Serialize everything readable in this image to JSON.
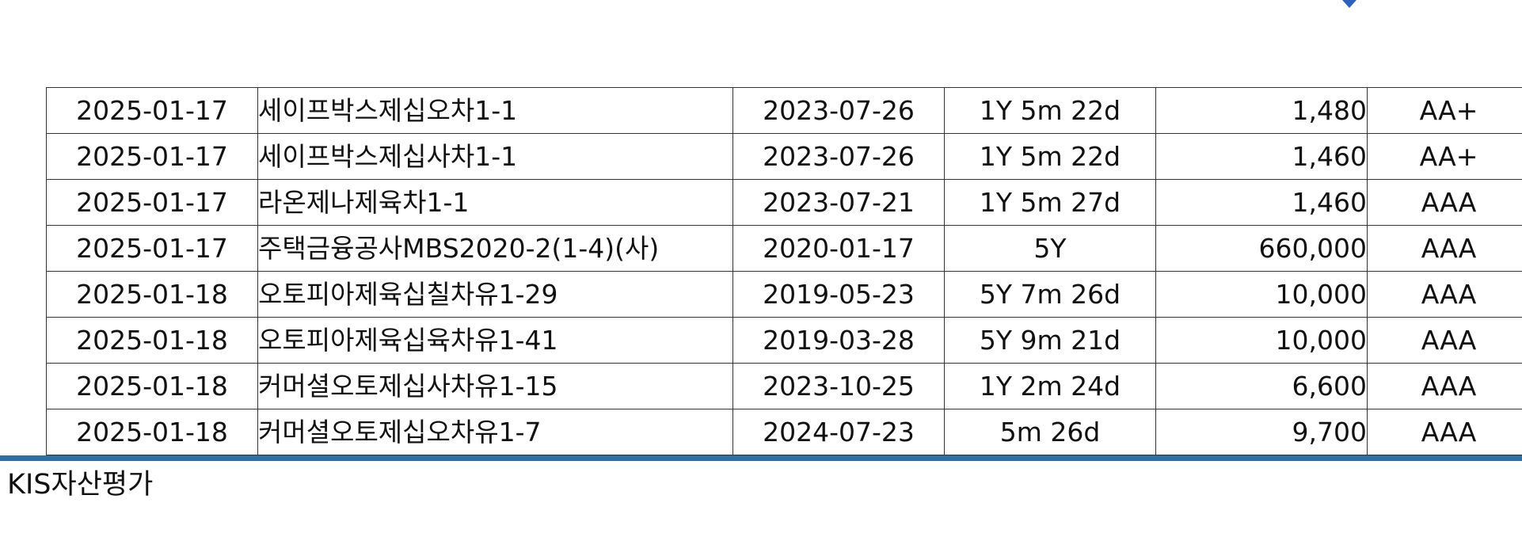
{
  "brand": {
    "name": "KIS자산평가",
    "accent_color": "#2f6ea5",
    "logo_color": "#1f4fa3",
    "logo_icon": "diamond-logo-icon"
  },
  "table": {
    "rows": [
      [
        "2025-01-17",
        "세이프박스제십오차1-1",
        "2023-07-26",
        "1Y 5m 22d",
        "1,480",
        "AA+"
      ],
      [
        "2025-01-17",
        "세이프박스제십사차1-1",
        "2023-07-26",
        "1Y 5m 22d",
        "1,460",
        "AA+"
      ],
      [
        "2025-01-17",
        "라온제나제육차1-1",
        "2023-07-21",
        "1Y 5m 27d",
        "1,460",
        "AAA"
      ],
      [
        "2025-01-17",
        "주택금융공사MBS2020-2(1-4)(사)",
        "2020-01-17",
        "5Y",
        "660,000",
        "AAA"
      ],
      [
        "2025-01-18",
        "오토피아제육십칠차유1-29",
        "2019-05-23",
        "5Y 7m 26d",
        "10,000",
        "AAA"
      ],
      [
        "2025-01-18",
        "오토피아제육십육차유1-41",
        "2019-03-28",
        "5Y 9m 21d",
        "10,000",
        "AAA"
      ],
      [
        "2025-01-18",
        "커머셜오토제십사차유1-15",
        "2023-10-25",
        "1Y 2m 24d",
        "6,600",
        "AAA"
      ],
      [
        "2025-01-18",
        "커머셜오토제십오차유1-7",
        "2024-07-23",
        "5m 26d",
        "9,700",
        "AAA"
      ]
    ]
  }
}
